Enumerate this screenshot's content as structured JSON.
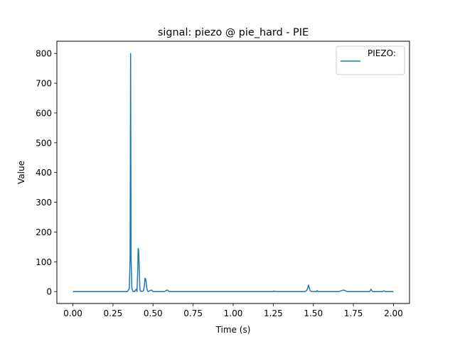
{
  "chart_data": {
    "type": "line",
    "title": "signal: piezo @ pie_hard - PIE",
    "xlabel": "Time (s)",
    "ylabel": "Value",
    "xlim": [
      -0.1,
      2.1
    ],
    "ylim": [
      -40.05,
      841.05
    ],
    "x_ticks": [
      0.0,
      0.25,
      0.5,
      0.75,
      1.0,
      1.25,
      1.5,
      1.75,
      2.0
    ],
    "x_tick_labels": [
      "0.00",
      "0.25",
      "0.50",
      "0.75",
      "1.00",
      "1.25",
      "1.50",
      "1.75",
      "2.00"
    ],
    "y_ticks": [
      0,
      100,
      200,
      300,
      400,
      500,
      600,
      700,
      800
    ],
    "y_tick_labels": [
      "0",
      "100",
      "200",
      "300",
      "400",
      "500",
      "600",
      "700",
      "800"
    ],
    "grid": false,
    "legend_position": "upper right",
    "series": [
      {
        "name": "PIEZO:",
        "color": "#1f77b4",
        "x": [
          0.0,
          0.34,
          0.352,
          0.357,
          0.36,
          0.363,
          0.368,
          0.375,
          0.385,
          0.39,
          0.395,
          0.4,
          0.405,
          0.407,
          0.41,
          0.413,
          0.417,
          0.42,
          0.43,
          0.44,
          0.445,
          0.45,
          0.455,
          0.46,
          0.465,
          0.47,
          0.48,
          0.49,
          0.5,
          0.52,
          0.57,
          0.58,
          0.59,
          0.6,
          0.62,
          1.25,
          1.255,
          1.26,
          1.45,
          1.46,
          1.465,
          1.47,
          1.475,
          1.48,
          1.49,
          1.52,
          1.525,
          1.53,
          1.66,
          1.68,
          1.69,
          1.7,
          1.71,
          1.85,
          1.855,
          1.86,
          1.865,
          1.87,
          1.93,
          1.94,
          1.95,
          2.0
        ],
        "y": [
          0,
          0,
          10,
          120,
          800,
          110,
          10,
          0,
          0,
          5,
          8,
          0,
          80,
          145,
          140,
          95,
          20,
          2,
          0,
          3,
          15,
          45,
          40,
          15,
          3,
          0,
          3,
          5,
          0,
          0,
          0,
          3,
          5,
          0,
          0,
          0,
          2,
          0,
          0,
          5,
          12,
          22,
          12,
          3,
          0,
          0,
          3,
          0,
          0,
          4,
          5,
          3,
          0,
          0,
          3,
          8,
          3,
          0,
          0,
          2,
          0,
          0
        ]
      }
    ]
  }
}
